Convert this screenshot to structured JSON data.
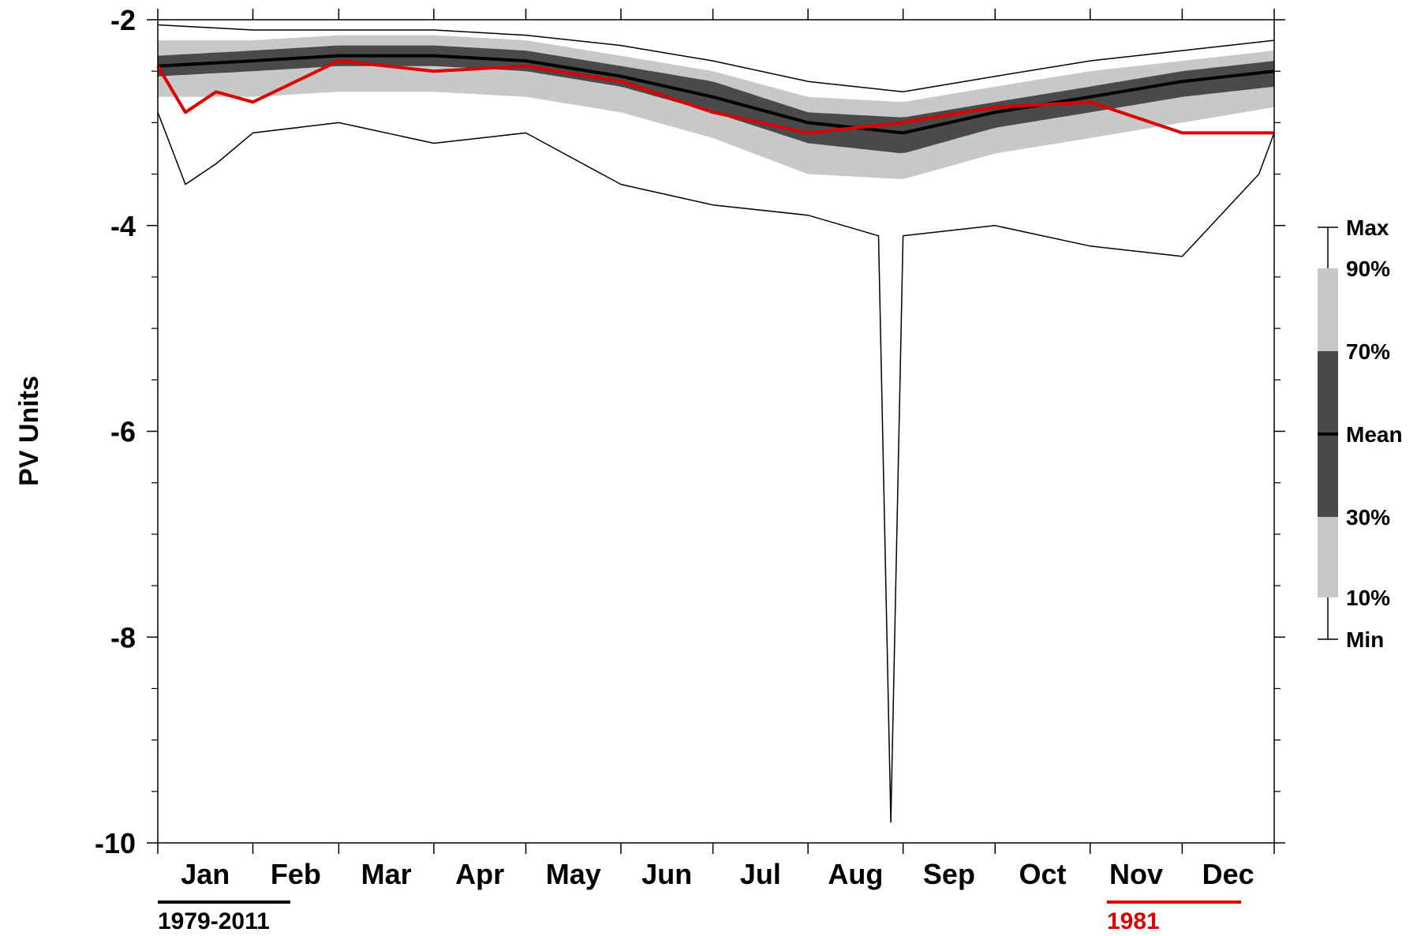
{
  "chart_data": {
    "type": "line",
    "title": "",
    "ylabel": "PV Units",
    "xlabel": "",
    "ylim": [
      -10,
      -2
    ],
    "yticks": [
      -2,
      -4,
      -6,
      -8,
      -10
    ],
    "ytick_labels": [
      "-2",
      "-4",
      "-6",
      "-8",
      "-10"
    ],
    "categories": [
      "Jan",
      "Feb",
      "Mar",
      "Apr",
      "May",
      "Jun",
      "Jul",
      "Aug",
      "Sep",
      "Oct",
      "Nov",
      "Dec"
    ],
    "x_unit": "day of year",
    "x_range": [
      1,
      365
    ],
    "series": [
      {
        "name": "Mean",
        "color": "#000000",
        "x": [
          1,
          32,
          60,
          91,
          121,
          152,
          182,
          213,
          244,
          274,
          305,
          335,
          365
        ],
        "values": [
          -2.45,
          -2.4,
          -2.35,
          -2.35,
          -2.4,
          -2.55,
          -2.75,
          -3.0,
          -3.1,
          -2.9,
          -2.75,
          -2.6,
          -2.5
        ]
      },
      {
        "name": "Max",
        "color": "#000000",
        "x": [
          1,
          32,
          60,
          91,
          121,
          152,
          182,
          213,
          244,
          274,
          305,
          335,
          365
        ],
        "values": [
          -2.05,
          -2.1,
          -2.1,
          -2.1,
          -2.15,
          -2.25,
          -2.4,
          -2.6,
          -2.7,
          -2.55,
          -2.4,
          -2.3,
          -2.2
        ]
      },
      {
        "name": "Min",
        "color": "#000000",
        "x": [
          1,
          10,
          20,
          32,
          60,
          91,
          121,
          152,
          182,
          213,
          236,
          240,
          244,
          274,
          305,
          335,
          360,
          365
        ],
        "values": [
          -2.9,
          -3.6,
          -3.4,
          -3.1,
          -3.0,
          -3.2,
          -3.1,
          -3.6,
          -3.8,
          -3.9,
          -4.1,
          -9.8,
          -4.1,
          -4.0,
          -4.2,
          -4.3,
          -3.5,
          -3.1
        ]
      },
      {
        "name": "1981",
        "color": "#dd0000",
        "x": [
          1,
          10,
          20,
          32,
          60,
          91,
          121,
          152,
          182,
          213,
          244,
          274,
          305,
          335,
          365
        ],
        "values": [
          -2.45,
          -2.9,
          -2.7,
          -2.8,
          -2.4,
          -2.5,
          -2.45,
          -2.6,
          -2.9,
          -3.1,
          -3.0,
          -2.85,
          -2.8,
          -3.1,
          -3.1
        ]
      }
    ],
    "bands": [
      {
        "name": "10%-90%",
        "color": "#c8c8c8",
        "x": [
          1,
          32,
          60,
          91,
          121,
          152,
          182,
          213,
          244,
          274,
          305,
          335,
          365
        ],
        "lower": [
          -2.75,
          -2.75,
          -2.7,
          -2.7,
          -2.75,
          -2.9,
          -3.15,
          -3.5,
          -3.55,
          -3.3,
          -3.15,
          -3.0,
          -2.85
        ],
        "upper": [
          -2.2,
          -2.2,
          -2.15,
          -2.15,
          -2.2,
          -2.35,
          -2.5,
          -2.75,
          -2.8,
          -2.65,
          -2.5,
          -2.4,
          -2.3
        ]
      },
      {
        "name": "30%-70%",
        "color": "#4a4a4a",
        "x": [
          1,
          32,
          60,
          91,
          121,
          152,
          182,
          213,
          244,
          274,
          305,
          335,
          365
        ],
        "lower": [
          -2.55,
          -2.5,
          -2.45,
          -2.45,
          -2.5,
          -2.65,
          -2.9,
          -3.2,
          -3.3,
          -3.05,
          -2.9,
          -2.75,
          -2.65
        ],
        "upper": [
          -2.35,
          -2.3,
          -2.25,
          -2.25,
          -2.3,
          -2.45,
          -2.6,
          -2.9,
          -2.95,
          -2.8,
          -2.65,
          -2.5,
          -2.4
        ]
      }
    ],
    "legend": {
      "placement": "right",
      "labels": [
        "Max",
        "90%",
        "70%",
        "Mean",
        "30%",
        "10%",
        "Min"
      ]
    },
    "footer_labels": {
      "climatology": "1979-2011",
      "year": "1981"
    },
    "colors": {
      "mean": "#000000",
      "year": "#dd0000",
      "outer_band": "#c8c8c8",
      "inner_band": "#4a4a4a"
    },
    "grid": false
  }
}
